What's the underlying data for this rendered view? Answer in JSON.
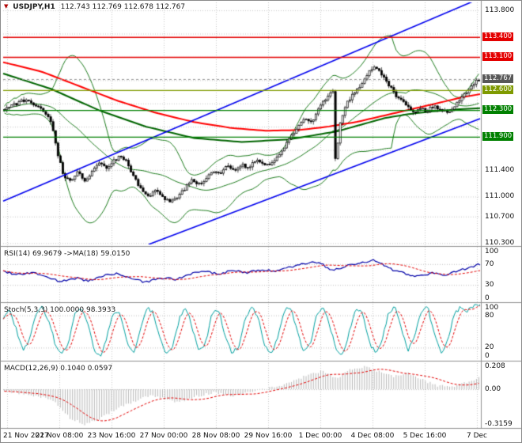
{
  "window": {
    "symbol_title": "USDJPY,H1",
    "ohlc_text": "112.743 112.769 112.678 112.767"
  },
  "chart_data": {
    "type": "candlestick",
    "symbol": "USDJPY",
    "timeframe": "H1",
    "current_ohlc": {
      "open": 112.743,
      "high": 112.769,
      "low": 112.678,
      "close": 112.767
    },
    "x_labels": [
      "21 Nov 2017",
      "22 Nov 08:00",
      "23 Nov 16:00",
      "27 Nov 00:00",
      "28 Nov 08:00",
      "29 Nov 16:00",
      "1 Dec 00:00",
      "4 Dec 08:00",
      "5 Dec 16:00",
      "7 Dec"
    ],
    "price_axis": {
      "min": 110.28,
      "max": 113.92,
      "plain_ticks": [
        {
          "label": "113.800",
          "value": 113.8
        },
        {
          "label": "111.400",
          "value": 111.4
        },
        {
          "label": "111.000",
          "value": 111.0
        },
        {
          "label": "110.700",
          "value": 110.7
        },
        {
          "label": "110.300",
          "value": 110.3
        }
      ],
      "grid_values": [
        113.8,
        113.45,
        113.1,
        112.75,
        112.4,
        112.05,
        111.7,
        111.4,
        111.0,
        110.7,
        110.3
      ]
    },
    "levels": [
      {
        "label": "113.400",
        "value": 113.4,
        "color": "#e40000",
        "width": 1.6
      },
      {
        "label": "113.100",
        "value": 113.1,
        "color": "#e40000",
        "width": 1.6
      },
      {
        "label": "112.600",
        "value": 112.6,
        "color": "#7f9a00",
        "width": 1.3
      },
      {
        "label": "112.300",
        "value": 112.3,
        "color": "#008000",
        "width": 1.3
      },
      {
        "label": "111.900",
        "value": 111.9,
        "color": "#008000",
        "width": 1.3
      }
    ],
    "current_price": {
      "label": "112.767",
      "value": 112.767,
      "badge_color": "#585858"
    },
    "trend_lines": [
      {
        "t1": 0.0,
        "p1": 110.93,
        "t2": 1.0,
        "p2": 113.98,
        "color": "#0000ee",
        "width": 1.6
      },
      {
        "t1": 0.305,
        "p1": 110.28,
        "t2": 1.0,
        "p2": 112.17,
        "color": "#0000ee",
        "width": 1.6
      }
    ],
    "close_anchors": [
      [
        0.0,
        112.32
      ],
      [
        0.02,
        112.38
      ],
      [
        0.045,
        112.46
      ],
      [
        0.07,
        112.36
      ],
      [
        0.09,
        112.22
      ],
      [
        0.1,
        112.1
      ],
      [
        0.112,
        111.65
      ],
      [
        0.125,
        111.3
      ],
      [
        0.14,
        111.22
      ],
      [
        0.155,
        111.36
      ],
      [
        0.17,
        111.25
      ],
      [
        0.185,
        111.38
      ],
      [
        0.2,
        111.5
      ],
      [
        0.215,
        111.42
      ],
      [
        0.23,
        111.53
      ],
      [
        0.245,
        111.62
      ],
      [
        0.26,
        111.5
      ],
      [
        0.275,
        111.26
      ],
      [
        0.29,
        111.1
      ],
      [
        0.305,
        111.02
      ],
      [
        0.32,
        111.1
      ],
      [
        0.335,
        110.98
      ],
      [
        0.35,
        110.9
      ],
      [
        0.365,
        111.0
      ],
      [
        0.38,
        111.12
      ],
      [
        0.395,
        111.25
      ],
      [
        0.41,
        111.18
      ],
      [
        0.425,
        111.28
      ],
      [
        0.44,
        111.4
      ],
      [
        0.455,
        111.34
      ],
      [
        0.47,
        111.45
      ],
      [
        0.485,
        111.39
      ],
      [
        0.5,
        111.48
      ],
      [
        0.515,
        111.44
      ],
      [
        0.53,
        111.55
      ],
      [
        0.545,
        111.5
      ],
      [
        0.56,
        111.46
      ],
      [
        0.575,
        111.6
      ],
      [
        0.59,
        111.75
      ],
      [
        0.605,
        111.9
      ],
      [
        0.62,
        112.06
      ],
      [
        0.635,
        112.18
      ],
      [
        0.648,
        112.1
      ],
      [
        0.66,
        112.28
      ],
      [
        0.672,
        112.42
      ],
      [
        0.684,
        112.55
      ],
      [
        0.692,
        112.62
      ],
      [
        0.698,
        111.45
      ],
      [
        0.706,
        112.05
      ],
      [
        0.715,
        112.3
      ],
      [
        0.725,
        112.45
      ],
      [
        0.74,
        112.58
      ],
      [
        0.755,
        112.72
      ],
      [
        0.77,
        112.88
      ],
      [
        0.78,
        112.97
      ],
      [
        0.79,
        112.9
      ],
      [
        0.8,
        112.8
      ],
      [
        0.815,
        112.62
      ],
      [
        0.83,
        112.48
      ],
      [
        0.845,
        112.38
      ],
      [
        0.86,
        112.26
      ],
      [
        0.875,
        112.33
      ],
      [
        0.89,
        112.28
      ],
      [
        0.905,
        112.36
      ],
      [
        0.92,
        112.3
      ],
      [
        0.935,
        112.25
      ],
      [
        0.95,
        112.38
      ],
      [
        0.965,
        112.5
      ],
      [
        0.98,
        112.62
      ],
      [
        1.0,
        112.767
      ]
    ],
    "red_ma_anchors": [
      [
        0.0,
        113.02
      ],
      [
        0.08,
        112.88
      ],
      [
        0.16,
        112.66
      ],
      [
        0.24,
        112.44
      ],
      [
        0.32,
        112.26
      ],
      [
        0.4,
        112.12
      ],
      [
        0.48,
        112.03
      ],
      [
        0.55,
        111.99
      ],
      [
        0.62,
        112.0
      ],
      [
        0.68,
        112.05
      ],
      [
        0.74,
        112.12
      ],
      [
        0.8,
        112.22
      ],
      [
        0.86,
        112.32
      ],
      [
        0.92,
        112.42
      ],
      [
        0.96,
        112.49
      ],
      [
        1.0,
        112.54
      ]
    ],
    "green_ma_anchors": [
      [
        0.0,
        112.85
      ],
      [
        0.1,
        112.62
      ],
      [
        0.2,
        112.3
      ],
      [
        0.3,
        112.05
      ],
      [
        0.4,
        111.88
      ],
      [
        0.5,
        111.82
      ],
      [
        0.6,
        111.86
      ],
      [
        0.7,
        111.98
      ],
      [
        0.75,
        112.08
      ],
      [
        0.8,
        112.18
      ],
      [
        0.85,
        112.24
      ],
      [
        0.9,
        112.28
      ],
      [
        0.95,
        112.31
      ],
      [
        1.0,
        112.33
      ]
    ],
    "colors": {
      "up_body": "#ffffff",
      "down_body": "#000000",
      "wick": "#000000",
      "red_ma": "#ff0000",
      "green_band": "#1e7d1e",
      "green_dark": "#006400",
      "grid": "#c9c9c9",
      "separator": "#8f8f8f",
      "silver": "#c0c0c0"
    },
    "indicators": {
      "rsi": {
        "title": "RSI(14) 69.9679 ->MA(18) 59.0150",
        "value": 69.9679,
        "ma_value": 59.015,
        "scale": [
          {
            "label": "100",
            "value": 100
          },
          {
            "label": "70",
            "value": 70
          },
          {
            "label": "30",
            "value": 30
          },
          {
            "label": "0",
            "value": 0
          }
        ],
        "levels": [
          70,
          30
        ],
        "line_color": "#0000a8",
        "signal_color": "#e40000",
        "anchors": [
          [
            0.0,
            56
          ],
          [
            0.03,
            50
          ],
          [
            0.06,
            54
          ],
          [
            0.09,
            46
          ],
          [
            0.12,
            36
          ],
          [
            0.15,
            43
          ],
          [
            0.18,
            38
          ],
          [
            0.21,
            47
          ],
          [
            0.24,
            53
          ],
          [
            0.27,
            41
          ],
          [
            0.3,
            35
          ],
          [
            0.33,
            44
          ],
          [
            0.36,
            41
          ],
          [
            0.39,
            50
          ],
          [
            0.42,
            56
          ],
          [
            0.45,
            51
          ],
          [
            0.48,
            57
          ],
          [
            0.51,
            53
          ],
          [
            0.54,
            59
          ],
          [
            0.57,
            56
          ],
          [
            0.6,
            63
          ],
          [
            0.63,
            70
          ],
          [
            0.66,
            74
          ],
          [
            0.69,
            58
          ],
          [
            0.72,
            66
          ],
          [
            0.75,
            73
          ],
          [
            0.78,
            77
          ],
          [
            0.81,
            61
          ],
          [
            0.84,
            52
          ],
          [
            0.87,
            47
          ],
          [
            0.9,
            53
          ],
          [
            0.93,
            49
          ],
          [
            0.96,
            58
          ],
          [
            1.0,
            70
          ]
        ]
      },
      "stoch": {
        "title": "Stoch(5,3,3) 100.0000 98.3933",
        "value": 100.0,
        "signal_value": 98.3933,
        "scale": [
          {
            "label": "100",
            "value": 100
          },
          {
            "label": "80",
            "value": 80
          },
          {
            "label": "20",
            "value": 20
          },
          {
            "label": "0",
            "value": 0
          }
        ],
        "levels": [
          80,
          20
        ],
        "line_color": "#00a0a0",
        "signal_color": "#e40000",
        "values": [
          75,
          90,
          55,
          15,
          35,
          80,
          95,
          70,
          25,
          8,
          30,
          85,
          95,
          60,
          15,
          5,
          45,
          90,
          80,
          30,
          10,
          55,
          95,
          85,
          35,
          8,
          25,
          75,
          95,
          55,
          12,
          30,
          85,
          90,
          40,
          10,
          20,
          70,
          95,
          80,
          25,
          6,
          40,
          90,
          95,
          50,
          12,
          28,
          80,
          95,
          60,
          15,
          8,
          50,
          92,
          85,
          30,
          10,
          35,
          85,
          95,
          55,
          15,
          40,
          88,
          95,
          45,
          10,
          30,
          82,
          95,
          88,
          97,
          100
        ]
      },
      "macd": {
        "title": "MACD(12,26,9) 0.1040 0.0597",
        "value": 0.104,
        "signal_value": 0.0597,
        "scale": [
          {
            "label": "0.208",
            "value": 0.208
          },
          {
            "label": "0.00",
            "value": 0.0
          },
          {
            "label": "-0.3159",
            "value": -0.3159
          }
        ],
        "range": {
          "min": -0.34,
          "max": 0.24
        },
        "hist_color": "#b8b8b8",
        "signal_color": "#e40000",
        "anchors": [
          [
            0.0,
            -0.015
          ],
          [
            0.04,
            -0.04
          ],
          [
            0.08,
            -0.07
          ],
          [
            0.11,
            -0.13
          ],
          [
            0.14,
            -0.27
          ],
          [
            0.17,
            -0.32
          ],
          [
            0.2,
            -0.27
          ],
          [
            0.24,
            -0.17
          ],
          [
            0.28,
            -0.1
          ],
          [
            0.31,
            -0.05
          ],
          [
            0.34,
            -0.09
          ],
          [
            0.37,
            -0.12
          ],
          [
            0.4,
            -0.07
          ],
          [
            0.44,
            -0.03
          ],
          [
            0.48,
            -0.06
          ],
          [
            0.52,
            -0.02
          ],
          [
            0.55,
            0.005
          ],
          [
            0.58,
            0.03
          ],
          [
            0.61,
            0.08
          ],
          [
            0.64,
            0.13
          ],
          [
            0.67,
            0.17
          ],
          [
            0.7,
            0.1
          ],
          [
            0.73,
            0.18
          ],
          [
            0.76,
            0.205
          ],
          [
            0.79,
            0.16
          ],
          [
            0.82,
            0.12
          ],
          [
            0.85,
            0.15
          ],
          [
            0.88,
            0.09
          ],
          [
            0.91,
            0.035
          ],
          [
            0.94,
            0.02
          ],
          [
            0.97,
            0.06
          ],
          [
            1.0,
            0.104
          ]
        ]
      }
    }
  }
}
